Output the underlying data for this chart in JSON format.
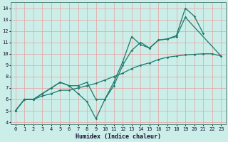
{
  "xlabel": "Humidex (Indice chaleur)",
  "bg_color": "#cceee8",
  "grid_color": "#e8a0a0",
  "line_color": "#1a7a6e",
  "xlim": [
    -0.5,
    23.5
  ],
  "ylim": [
    3.8,
    14.5
  ],
  "xticks": [
    0,
    1,
    2,
    3,
    4,
    5,
    6,
    7,
    8,
    9,
    10,
    11,
    12,
    13,
    14,
    15,
    16,
    17,
    18,
    19,
    20,
    21,
    22,
    23
  ],
  "yticks": [
    4,
    5,
    6,
    7,
    8,
    9,
    10,
    11,
    12,
    13,
    14
  ],
  "line1_x": [
    0,
    1,
    2,
    3,
    4,
    5,
    5,
    6,
    7,
    8,
    9,
    10,
    11,
    12,
    13,
    14,
    15,
    16,
    17,
    18,
    19,
    20,
    21
  ],
  "line1_y": [
    5.0,
    6.0,
    6.0,
    6.5,
    7.0,
    7.5,
    7.5,
    7.2,
    6.5,
    5.8,
    4.3,
    6.0,
    7.5,
    9.3,
    11.5,
    10.8,
    10.5,
    11.2,
    11.3,
    11.6,
    14.0,
    13.3,
    11.8
  ],
  "line2_x": [
    0,
    1,
    2,
    3,
    4,
    5,
    6,
    7,
    8,
    9,
    10,
    11,
    12,
    13,
    14,
    15,
    16,
    17,
    18,
    19,
    23
  ],
  "line2_y": [
    5.0,
    6.0,
    6.0,
    6.5,
    7.0,
    7.5,
    7.2,
    7.2,
    7.5,
    6.0,
    6.0,
    7.2,
    9.0,
    10.3,
    11.0,
    10.5,
    11.2,
    11.3,
    11.5,
    13.2,
    9.8
  ],
  "line3_x": [
    0,
    1,
    2,
    3,
    4,
    5,
    6,
    7,
    8,
    9,
    10,
    11,
    12,
    13,
    14,
    15,
    16,
    17,
    18,
    19,
    20,
    21,
    22,
    23
  ],
  "line3_y": [
    5.0,
    6.0,
    6.0,
    6.3,
    6.5,
    6.8,
    6.8,
    7.0,
    7.2,
    7.4,
    7.7,
    8.0,
    8.3,
    8.7,
    9.0,
    9.2,
    9.5,
    9.7,
    9.8,
    9.9,
    9.95,
    10.0,
    10.0,
    9.8
  ]
}
